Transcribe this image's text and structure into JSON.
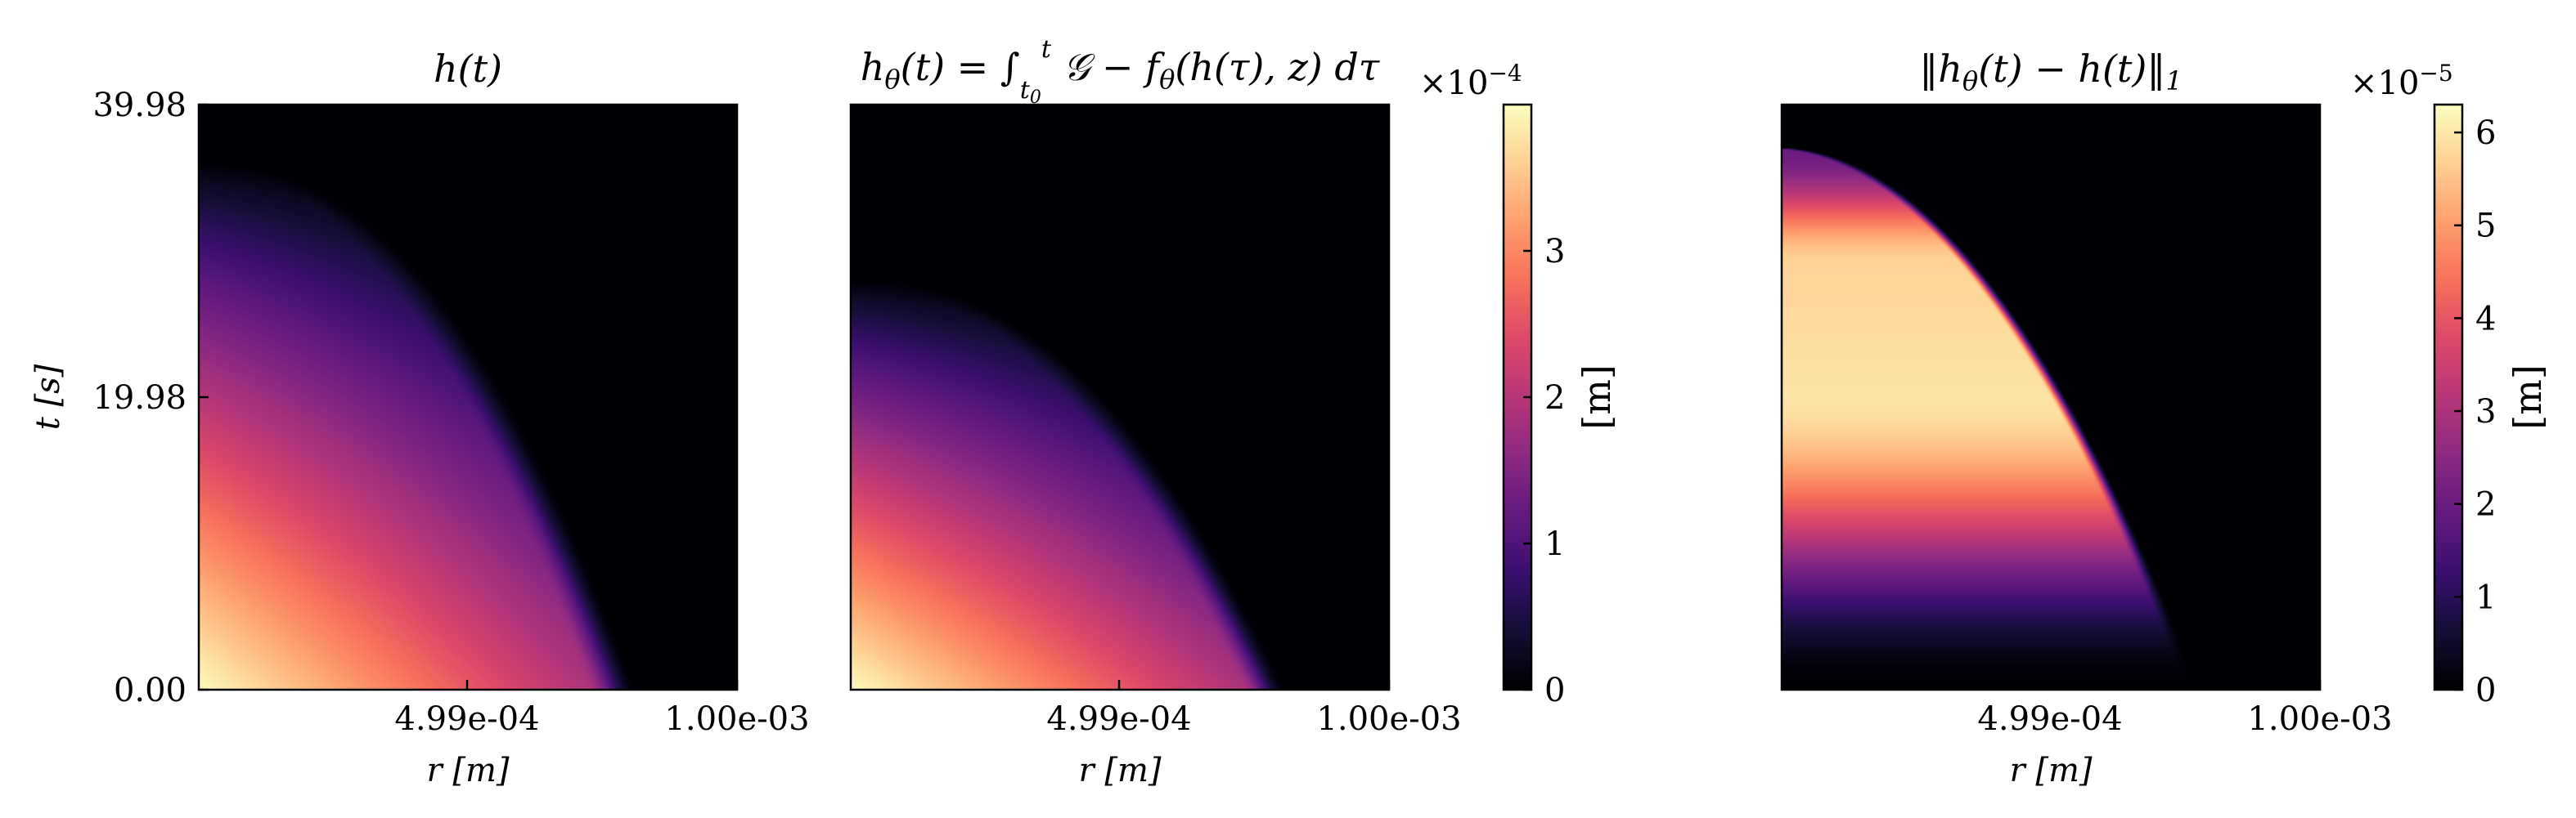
{
  "chart_data": [
    {
      "type": "heatmap",
      "title": "h(t)",
      "xlabel": "r [m]",
      "ylabel": "t [s]",
      "xlim": [
        0,
        0.001
      ],
      "ylim": [
        0,
        39.98
      ],
      "x_tick_labels": [
        "4.99e-04",
        "1.00e-03"
      ],
      "x_ticks": [
        0.000499,
        0.001
      ],
      "y_tick_labels": [
        "39.98",
        "19.98",
        "0.00"
      ],
      "y_ticks": [
        39.98,
        19.98,
        0.0
      ],
      "colormap": "magma",
      "vmax": 0.0004,
      "field": {
        "front_r0": 0.00077,
        "front_t0": 36.0,
        "front_power": 2.2,
        "edge": 9e-05,
        "fade": 0.85
      },
      "colorbar": null
    },
    {
      "type": "heatmap",
      "title": "hθ(t) = ∫ G − fθ(h(τ), z) dτ",
      "title_parts": {
        "base": "h",
        "sub": "θ",
        "after": "(t) = ∫",
        "int_lower": "t",
        "int_lower_sub": "0",
        "int_upper": "t",
        "integrand": " 𝒢 − f",
        "f_sub": "θ",
        "tail": "(h(τ), z) dτ"
      },
      "xlabel": "r [m]",
      "x_tick_labels": [
        "4.99e-04",
        "1.00e-03"
      ],
      "x_ticks": [
        0.000499,
        0.001
      ],
      "xlim": [
        0,
        0.001
      ],
      "ylim": [
        0,
        39.98
      ],
      "colormap": "magma",
      "vmax": 0.0004,
      "field": {
        "front_r0": 0.00077,
        "front_t0": 28.0,
        "front_power": 2.2,
        "edge": 8e-05,
        "fade": 0.85
      },
      "colorbar": {
        "unit": "[m]",
        "multiplier": "×10",
        "exponent": "−4",
        "tick_labels": [
          "0",
          "1",
          "2",
          "3"
        ],
        "ticks": [
          0,
          0.0001,
          0.0002,
          0.0003
        ],
        "range": [
          0,
          0.0004
        ]
      }
    },
    {
      "type": "heatmap",
      "title": "‖hθ(t) − h(t)‖₁",
      "title_parts": {
        "open": "‖h",
        "sub": "θ",
        "mid": "(t) − h(t)‖",
        "norm_sub": "1"
      },
      "xlabel": "r [m]",
      "x_tick_labels": [
        "4.99e-04",
        "1.00e-03"
      ],
      "x_ticks": [
        0.000499,
        0.001
      ],
      "xlim": [
        0,
        0.001
      ],
      "ylim": [
        0,
        39.98
      ],
      "colormap": "magma",
      "vmax": 6.3e-05,
      "field": {
        "front_r0": 0.00078,
        "front_t0": 37.0,
        "front_power": 2.0,
        "band": 4.0
      },
      "colorbar": {
        "unit": "[m]",
        "multiplier": "×10",
        "exponent": "−5",
        "tick_labels": [
          "0",
          "1",
          "2",
          "3",
          "4",
          "5",
          "6"
        ],
        "ticks": [
          0,
          1e-05,
          2e-05,
          3e-05,
          4e-05,
          5e-05,
          6e-05
        ],
        "range": [
          0,
          6.3e-05
        ]
      }
    }
  ]
}
